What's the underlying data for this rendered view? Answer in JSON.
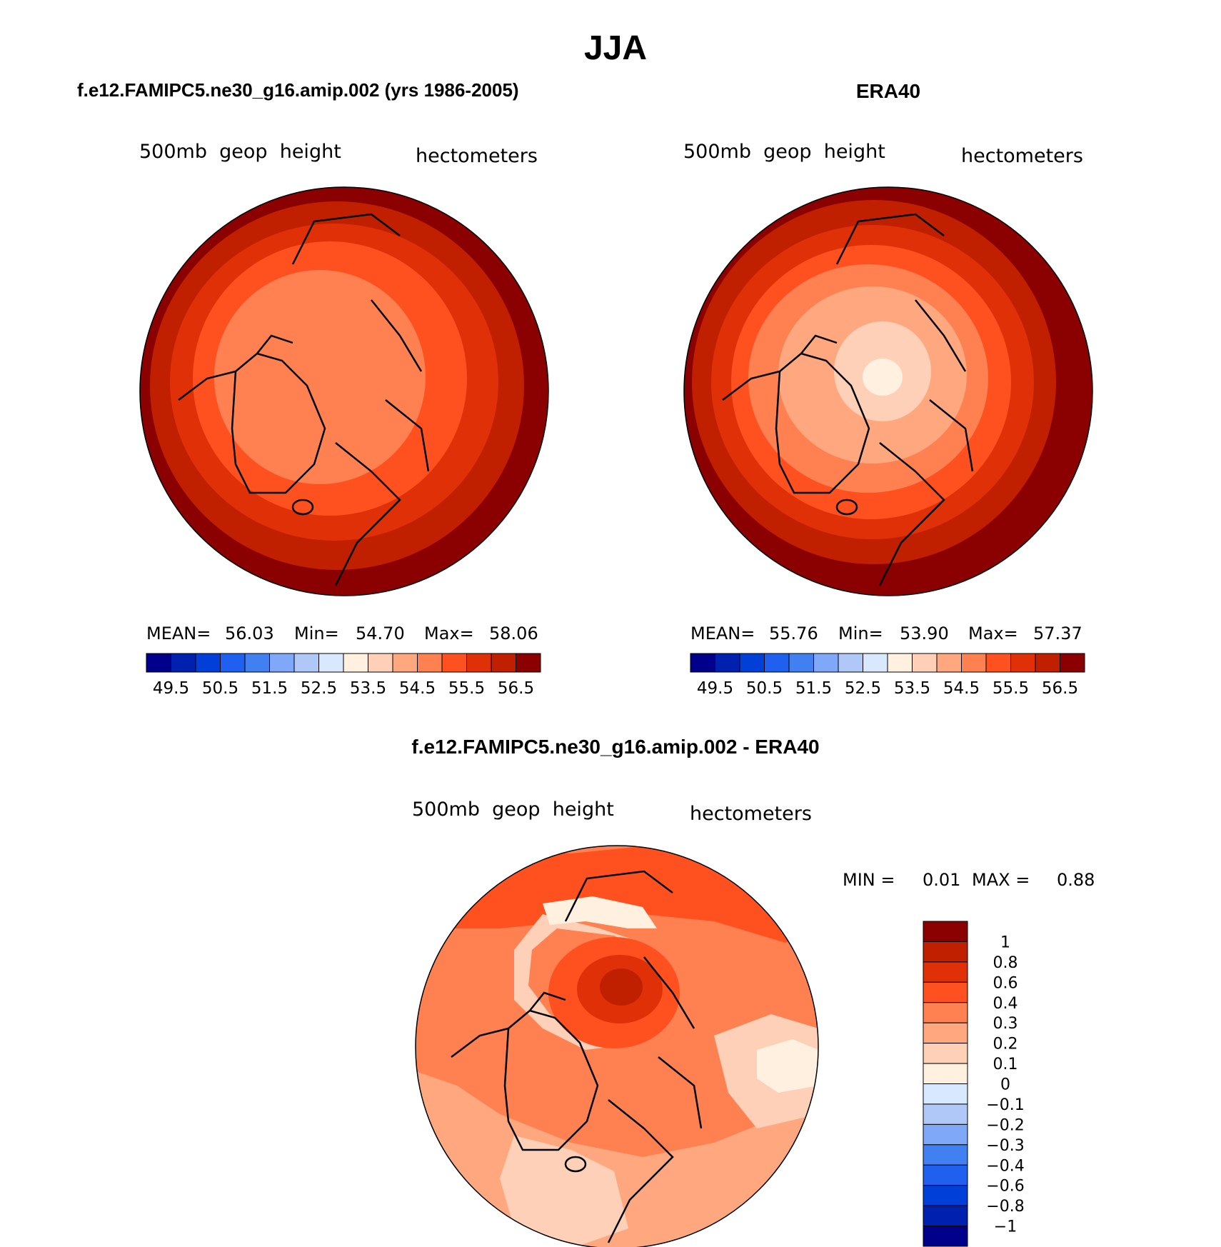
{
  "page": {
    "title": "JJA"
  },
  "panels": [
    {
      "title": "f.e12.FAMIPC5.ne30_g16.amip.002 (yrs 1986-2005)",
      "left_label": "500mb  geop  height",
      "right_label": "hectometers",
      "stats": {
        "mean_label": "MEAN=",
        "mean": "56.03",
        "min_label": "Min=",
        "min": "54.70",
        "max_label": "Max=",
        "max": "58.06"
      }
    },
    {
      "title": "ERA40",
      "left_label": "500mb  geop  height",
      "right_label": "hectometers",
      "stats": {
        "mean_label": "MEAN=",
        "mean": "55.76",
        "min_label": "Min=",
        "min": "53.90",
        "max_label": "Max=",
        "max": "57.37"
      }
    },
    {
      "title": "f.e12.FAMIPC5.ne30_g16.amip.002 - ERA40",
      "left_label": "500mb  geop  height",
      "right_label": "hectometers",
      "stats": {
        "min_label": "MIN =",
        "min": "0.01",
        "max_label": "MAX =",
        "max": "0.88"
      }
    }
  ],
  "horizontal_colorbar": {
    "colors": [
      "#00008b",
      "#0020b0",
      "#0040d8",
      "#2060f0",
      "#4080f0",
      "#80a8f8",
      "#b0c8f8",
      "#d8e8ff",
      "#fff0e0",
      "#ffd0b8",
      "#ffa880",
      "#ff8050",
      "#ff5020",
      "#e03008",
      "#c02000",
      "#8b0000"
    ],
    "labels": [
      "49.5",
      "50.5",
      "51.5",
      "52.5",
      "53.5",
      "54.5",
      "55.5",
      "56.5"
    ]
  },
  "vertical_colorbar": {
    "colors_top_to_bottom": [
      "#8b0000",
      "#c02000",
      "#e03008",
      "#ff5020",
      "#ff8050",
      "#ffa880",
      "#ffd0b8",
      "#fff0e0",
      "#d8e8ff",
      "#b0c8f8",
      "#80a8f8",
      "#4080f0",
      "#2060f0",
      "#0040d8",
      "#0020b0",
      "#00008b"
    ],
    "labels": [
      "1",
      "0.8",
      "0.6",
      "0.4",
      "0.3",
      "0.2",
      "0.1",
      "0",
      "−0.1",
      "−0.2",
      "−0.3",
      "−0.4",
      "−0.6",
      "−0.8",
      "−1"
    ]
  }
}
